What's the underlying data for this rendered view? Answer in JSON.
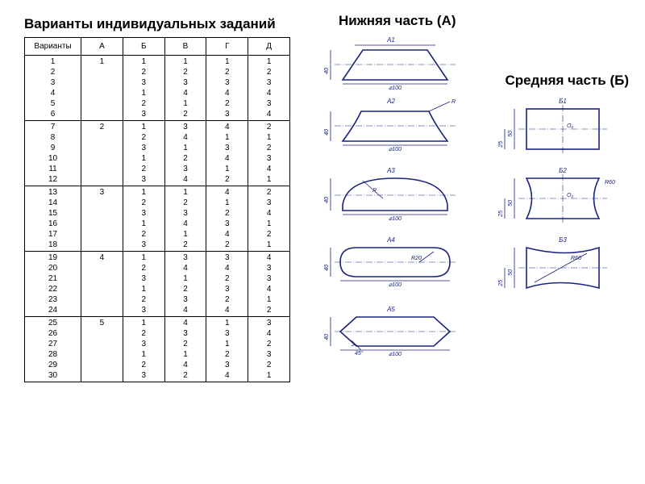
{
  "heading_main": "Варианты индивидуальных заданий",
  "heading_a": "Нижняя часть (А)",
  "heading_b": "Средняя часть (Б)",
  "table": {
    "head_variants": "Варианты",
    "cols": [
      "А",
      "Б",
      "В",
      "Г",
      "Д"
    ],
    "groups": [
      {
        "rows": [
          "1",
          "2",
          "3",
          "4",
          "5",
          "6"
        ],
        "a": "1",
        "b": [
          "1",
          "2",
          "3",
          "1",
          "2",
          "3"
        ],
        "v": [
          "1",
          "2",
          "3",
          "4",
          "1",
          "2"
        ],
        "g": [
          "1",
          "2",
          "3",
          "4",
          "2",
          "3"
        ],
        "d": [
          "1",
          "2",
          "3",
          "4",
          "3",
          "4"
        ]
      },
      {
        "rows": [
          "7",
          "8",
          "9",
          "10",
          "11",
          "12"
        ],
        "a": "2",
        "b": [
          "1",
          "2",
          "3",
          "1",
          "2",
          "3"
        ],
        "v": [
          "3",
          "4",
          "1",
          "2",
          "3",
          "4"
        ],
        "g": [
          "4",
          "1",
          "3",
          "4",
          "1",
          "2"
        ],
        "d": [
          "2",
          "1",
          "2",
          "3",
          "4",
          "1"
        ]
      },
      {
        "rows": [
          "13",
          "14",
          "15",
          "16",
          "17",
          "18"
        ],
        "a": "3",
        "b": [
          "1",
          "2",
          "3",
          "1",
          "2",
          "3"
        ],
        "v": [
          "1",
          "2",
          "3",
          "4",
          "1",
          "2"
        ],
        "g": [
          "4",
          "1",
          "2",
          "3",
          "4",
          "2"
        ],
        "d": [
          "2",
          "3",
          "4",
          "1",
          "2",
          "1"
        ]
      },
      {
        "rows": [
          "19",
          "20",
          "21",
          "22",
          "23",
          "24"
        ],
        "a": "4",
        "b": [
          "1",
          "2",
          "3",
          "1",
          "2",
          "3"
        ],
        "v": [
          "3",
          "4",
          "1",
          "2",
          "3",
          "4"
        ],
        "g": [
          "3",
          "4",
          "2",
          "3",
          "2",
          "4"
        ],
        "d": [
          "4",
          "3",
          "3",
          "4",
          "1",
          "2"
        ]
      },
      {
        "rows": [
          "25",
          "26",
          "27",
          "28",
          "29",
          "30"
        ],
        "a": "5",
        "b": [
          "1",
          "2",
          "3",
          "1",
          "2",
          "3"
        ],
        "v": [
          "4",
          "3",
          "2",
          "1",
          "4",
          "2"
        ],
        "g": [
          "1",
          "3",
          "1",
          "2",
          "3",
          "4"
        ],
        "d": [
          "3",
          "4",
          "2",
          "3",
          "2",
          "1"
        ]
      }
    ]
  },
  "dims": {
    "w100": "⌀100",
    "h40": "40",
    "h50": "50",
    "h25": "25",
    "r20": "R20",
    "r60": "R60",
    "a45": "45°",
    "R": "R",
    "O2": "O₂"
  },
  "labels": {
    "A1": "А1",
    "A2": "А2",
    "A3": "А3",
    "A4": "А4",
    "A5": "А5",
    "B1": "Б1",
    "B2": "Б2",
    "B3": "Б3"
  },
  "colors": {
    "line": "#1a237e"
  }
}
